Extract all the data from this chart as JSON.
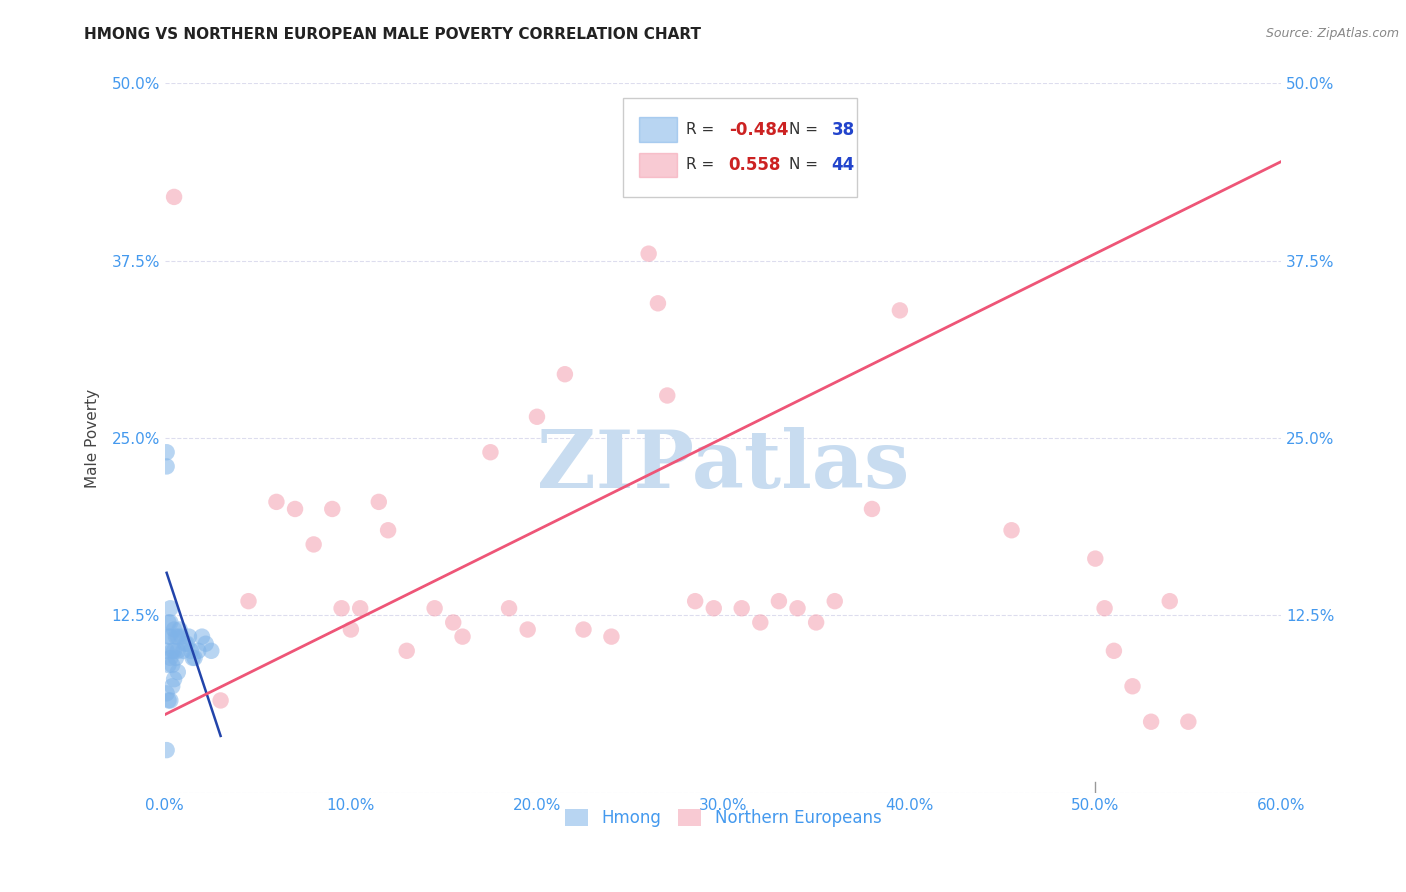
{
  "title": "HMONG VS NORTHERN EUROPEAN MALE POVERTY CORRELATION CHART",
  "source": "Source: ZipAtlas.com",
  "ylabel": "Male Poverty",
  "xlim": [
    0.0,
    0.6
  ],
  "ylim": [
    0.0,
    0.5
  ],
  "xticks": [
    0.0,
    0.1,
    0.2,
    0.3,
    0.4,
    0.5,
    0.6
  ],
  "yticks": [
    0.0,
    0.125,
    0.25,
    0.375,
    0.5
  ],
  "xticklabels": [
    "0.0%",
    "10.0%",
    "20.0%",
    "30.0%",
    "40.0%",
    "50.0%",
    "60.0%"
  ],
  "yticklabels_left": [
    "",
    "12.5%",
    "25.0%",
    "37.5%",
    "50.0%"
  ],
  "yticklabels_right": [
    "",
    "12.5%",
    "25.0%",
    "37.5%",
    "50.0%"
  ],
  "hmong_color": "#7FB3E8",
  "northern_color": "#F4A0B0",
  "hmong_line_color": "#2244AA",
  "northern_line_color": "#EE5577",
  "grid_color": "#DDDDEE",
  "tick_color": "#4499EE",
  "watermark_color": "#C8DCF0",
  "hmong_x": [
    0.001,
    0.001,
    0.001,
    0.001,
    0.002,
    0.002,
    0.002,
    0.002,
    0.003,
    0.003,
    0.003,
    0.003,
    0.003,
    0.004,
    0.004,
    0.004,
    0.005,
    0.005,
    0.005,
    0.006,
    0.006,
    0.007,
    0.007,
    0.007,
    0.008,
    0.009,
    0.01,
    0.011,
    0.012,
    0.013,
    0.014,
    0.015,
    0.016,
    0.018,
    0.02,
    0.022,
    0.025,
    0.001
  ],
  "hmong_y": [
    0.24,
    0.23,
    0.1,
    0.07,
    0.12,
    0.11,
    0.09,
    0.065,
    0.13,
    0.12,
    0.11,
    0.095,
    0.065,
    0.1,
    0.09,
    0.075,
    0.115,
    0.1,
    0.08,
    0.11,
    0.095,
    0.11,
    0.1,
    0.085,
    0.115,
    0.11,
    0.1,
    0.105,
    0.105,
    0.11,
    0.1,
    0.095,
    0.095,
    0.1,
    0.11,
    0.105,
    0.1,
    0.03
  ],
  "northern_x": [
    0.005,
    0.03,
    0.045,
    0.06,
    0.07,
    0.08,
    0.09,
    0.095,
    0.1,
    0.105,
    0.115,
    0.12,
    0.13,
    0.145,
    0.155,
    0.16,
    0.175,
    0.185,
    0.195,
    0.2,
    0.215,
    0.225,
    0.24,
    0.26,
    0.265,
    0.27,
    0.285,
    0.295,
    0.31,
    0.32,
    0.33,
    0.34,
    0.35,
    0.36,
    0.38,
    0.395,
    0.455,
    0.5,
    0.505,
    0.51,
    0.52,
    0.53,
    0.54,
    0.55
  ],
  "northern_y": [
    0.42,
    0.065,
    0.135,
    0.205,
    0.2,
    0.175,
    0.2,
    0.13,
    0.115,
    0.13,
    0.205,
    0.185,
    0.1,
    0.13,
    0.12,
    0.11,
    0.24,
    0.13,
    0.115,
    0.265,
    0.295,
    0.115,
    0.11,
    0.38,
    0.345,
    0.28,
    0.135,
    0.13,
    0.13,
    0.12,
    0.135,
    0.13,
    0.12,
    0.135,
    0.2,
    0.34,
    0.185,
    0.165,
    0.13,
    0.1,
    0.075,
    0.05,
    0.135,
    0.05
  ],
  "hmong_line_x": [
    0.001,
    0.03
  ],
  "hmong_line_y_start": 0.155,
  "hmong_line_y_end": 0.04,
  "northern_line_x": [
    0.0,
    0.6
  ],
  "northern_line_y_start": 0.055,
  "northern_line_y_end": 0.445,
  "legend_R1": "-0.484",
  "legend_N1": "38",
  "legend_R2": "0.558",
  "legend_N2": "44",
  "watermark": "ZIPatlas"
}
